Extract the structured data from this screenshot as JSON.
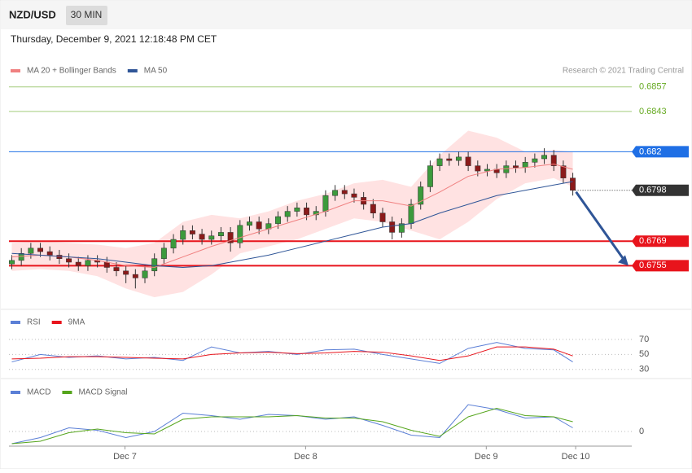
{
  "header": {
    "symbol": "NZD/USD",
    "interval": "30 MIN",
    "timestamp": "Thursday, December 9, 2021 12:18:48 PM CET"
  },
  "chart_data": [
    {
      "type": "candlestick",
      "credit": "Research © 2021 Trading Central",
      "xlim": [
        -0.3,
        65.2
      ],
      "xticks": [
        {
          "value": 11.9,
          "label": "Dec 7"
        },
        {
          "value": 30.9,
          "label": "Dec 8"
        },
        {
          "value": 49.9,
          "label": "Dec 9"
        },
        {
          "value": 59.3,
          "label": "Dec 10"
        }
      ],
      "ylim": [
        0.6731,
        0.6888
      ],
      "candles": {
        "up_color": "#3c9a3c",
        "down_color": "#8b1a1a",
        "open": [
          0.6756,
          0.6758,
          0.6762,
          0.6765,
          0.6763,
          0.6761,
          0.6759,
          0.6757,
          0.6755,
          0.6758,
          0.6757,
          0.6754,
          0.6752,
          0.675,
          0.6748,
          0.6752,
          0.6759,
          0.6765,
          0.677,
          0.6775,
          0.6773,
          0.677,
          0.6772,
          0.6774,
          0.6768,
          0.6778,
          0.678,
          0.6776,
          0.6779,
          0.6783,
          0.6786,
          0.6788,
          0.6784,
          0.6786,
          0.6795,
          0.6798,
          0.6796,
          0.6794,
          0.679,
          0.6785,
          0.678,
          0.6774,
          0.6779,
          0.679,
          0.68,
          0.6812,
          0.6816,
          0.6815,
          0.6817,
          0.6812,
          0.6809,
          0.681,
          0.6808,
          0.6812,
          0.6811,
          0.6814,
          0.6816,
          0.6818,
          0.6812,
          0.6805
        ],
        "high": [
          0.6761,
          0.6765,
          0.6768,
          0.6768,
          0.6766,
          0.6764,
          0.6762,
          0.676,
          0.6761,
          0.6761,
          0.676,
          0.6757,
          0.6755,
          0.6753,
          0.6755,
          0.6762,
          0.6768,
          0.6773,
          0.6778,
          0.6778,
          0.6776,
          0.6775,
          0.6777,
          0.6777,
          0.6781,
          0.6783,
          0.6783,
          0.6782,
          0.6786,
          0.6789,
          0.6791,
          0.6791,
          0.6789,
          0.6798,
          0.6801,
          0.6801,
          0.6799,
          0.6797,
          0.6793,
          0.6788,
          0.6783,
          0.6782,
          0.6793,
          0.6803,
          0.6815,
          0.6819,
          0.6819,
          0.682,
          0.682,
          0.6815,
          0.6813,
          0.6813,
          0.6815,
          0.6815,
          0.6817,
          0.6819,
          0.6822,
          0.6821,
          0.6815,
          0.6808
        ],
        "low": [
          0.6753,
          0.6755,
          0.6759,
          0.676,
          0.6758,
          0.6756,
          0.6754,
          0.6752,
          0.6752,
          0.6754,
          0.6751,
          0.6749,
          0.6745,
          0.6742,
          0.6745,
          0.6749,
          0.6756,
          0.6762,
          0.6767,
          0.677,
          0.6767,
          0.6767,
          0.6769,
          0.6763,
          0.6765,
          0.6775,
          0.6773,
          0.6773,
          0.6776,
          0.678,
          0.6783,
          0.6781,
          0.6781,
          0.6783,
          0.6792,
          0.6793,
          0.6791,
          0.6787,
          0.6782,
          0.6777,
          0.677,
          0.6771,
          0.6776,
          0.6787,
          0.6797,
          0.6809,
          0.6812,
          0.6812,
          0.6809,
          0.6806,
          0.6806,
          0.6805,
          0.6805,
          0.6808,
          0.6808,
          0.6811,
          0.6813,
          0.6809,
          0.6802,
          0.6795
        ],
        "close": [
          0.6758,
          0.6762,
          0.6765,
          0.6763,
          0.6761,
          0.6759,
          0.6757,
          0.6755,
          0.6758,
          0.6757,
          0.6754,
          0.6752,
          0.675,
          0.6748,
          0.6752,
          0.6759,
          0.6765,
          0.677,
          0.6775,
          0.6773,
          0.677,
          0.6772,
          0.6774,
          0.6768,
          0.6778,
          0.678,
          0.6776,
          0.6779,
          0.6783,
          0.6786,
          0.6788,
          0.6784,
          0.6786,
          0.6795,
          0.6798,
          0.6796,
          0.6794,
          0.679,
          0.6785,
          0.678,
          0.6774,
          0.6779,
          0.679,
          0.68,
          0.6812,
          0.6816,
          0.6815,
          0.6817,
          0.6812,
          0.6809,
          0.681,
          0.6808,
          0.6812,
          0.6811,
          0.6814,
          0.6816,
          0.6818,
          0.6812,
          0.6805,
          0.6798
        ]
      },
      "series": [
        {
          "name": "MA 20 + Bollinger Bands",
          "color": "#f08080",
          "band_color": "#ffd6d6",
          "x": [
            0,
            3,
            6,
            9,
            12,
            15,
            18,
            21,
            24,
            27,
            30,
            33,
            36,
            39,
            42,
            45,
            48,
            51,
            54,
            57,
            59
          ],
          "values": [
            0.676,
            0.6761,
            0.676,
            0.6758,
            0.6755,
            0.6754,
            0.676,
            0.6766,
            0.6771,
            0.6776,
            0.6781,
            0.6786,
            0.6792,
            0.6792,
            0.6789,
            0.6797,
            0.6806,
            0.681,
            0.6811,
            0.6813,
            0.681
          ],
          "upper": [
            0.6768,
            0.6769,
            0.6768,
            0.6767,
            0.6765,
            0.6768,
            0.678,
            0.6784,
            0.6782,
            0.6786,
            0.6792,
            0.6796,
            0.6802,
            0.6804,
            0.68,
            0.6818,
            0.6832,
            0.6828,
            0.682,
            0.6821,
            0.682
          ],
          "lower": [
            0.6752,
            0.6753,
            0.6752,
            0.6749,
            0.6742,
            0.6737,
            0.674,
            0.675,
            0.6762,
            0.6766,
            0.677,
            0.6776,
            0.6782,
            0.678,
            0.6775,
            0.677,
            0.678,
            0.6793,
            0.6802,
            0.6805,
            0.68
          ]
        },
        {
          "name": "MA 50",
          "color": "#2f5597",
          "x": [
            0,
            3,
            6,
            9,
            12,
            15,
            18,
            21,
            24,
            27,
            30,
            33,
            36,
            39,
            42,
            45,
            48,
            51,
            54,
            57,
            59
          ],
          "values": [
            0.6762,
            0.6761,
            0.676,
            0.6759,
            0.6757,
            0.6755,
            0.6754,
            0.6755,
            0.6758,
            0.6761,
            0.6765,
            0.6769,
            0.6773,
            0.6777,
            0.6779,
            0.6785,
            0.679,
            0.6795,
            0.6798,
            0.6801,
            0.6803
          ]
        }
      ],
      "levels": [
        {
          "value": 0.6857,
          "color": "#66aa22",
          "style": "plain"
        },
        {
          "value": 0.6843,
          "color": "#66aa22",
          "style": "plain"
        },
        {
          "value": 0.682,
          "color": "#1f6fe5",
          "style": "box"
        },
        {
          "value": 0.6798,
          "color": "#333333",
          "style": "current"
        },
        {
          "value": 0.6769,
          "color": "#e8141c",
          "style": "box"
        },
        {
          "value": 0.6755,
          "color": "#e8141c",
          "style": "box"
        }
      ]
    },
    {
      "type": "line",
      "xlim": [
        -0.3,
        65.2
      ],
      "ylim": [
        20,
        110
      ],
      "yticks": [
        70,
        50,
        30
      ],
      "series": [
        {
          "name": "RSI",
          "color": "#5b7fd6",
          "x": [
            0,
            3,
            6,
            9,
            12,
            15,
            18,
            21,
            24,
            27,
            30,
            33,
            36,
            39,
            42,
            45,
            48,
            51,
            54,
            57,
            59
          ],
          "values": [
            40,
            50,
            46,
            48,
            44,
            46,
            42,
            60,
            52,
            54,
            50,
            56,
            57,
            50,
            44,
            38,
            58,
            66,
            58,
            56,
            40
          ]
        },
        {
          "name": "9MA",
          "color": "#e8141c",
          "x": [
            0,
            3,
            6,
            9,
            12,
            15,
            18,
            21,
            24,
            27,
            30,
            33,
            36,
            39,
            42,
            45,
            48,
            51,
            54,
            57,
            59
          ],
          "values": [
            44,
            45,
            47,
            47,
            46,
            45,
            44,
            50,
            52,
            53,
            51,
            52,
            54,
            53,
            48,
            42,
            48,
            60,
            60,
            57,
            48
          ]
        }
      ]
    },
    {
      "type": "line",
      "xlim": [
        -0.3,
        65.2
      ],
      "ylim": [
        -0.00012,
        0.0004
      ],
      "yticks": [
        0
      ],
      "series": [
        {
          "name": "MACD",
          "color": "#5b7fd6",
          "x": [
            0,
            3,
            6,
            9,
            12,
            15,
            18,
            21,
            24,
            27,
            30,
            33,
            36,
            39,
            42,
            45,
            48,
            51,
            54,
            57,
            59
          ],
          "values": [
            -0.0001,
            -5e-05,
            3e-05,
            1e-05,
            -5e-05,
            0.0,
            0.00015,
            0.00013,
            0.0001,
            0.00014,
            0.00013,
            0.0001,
            0.00012,
            5e-05,
            -3e-05,
            -5e-05,
            0.00022,
            0.00018,
            0.00011,
            0.00012,
            3e-05
          ]
        },
        {
          "name": "MACD Signal",
          "color": "#55a51c",
          "x": [
            0,
            3,
            6,
            9,
            12,
            15,
            18,
            21,
            24,
            27,
            30,
            33,
            36,
            39,
            42,
            45,
            48,
            51,
            54,
            57,
            59
          ],
          "values": [
            -0.0001,
            -8e-05,
            -1e-05,
            2e-05,
            -1e-05,
            -2e-05,
            0.0001,
            0.00012,
            0.00012,
            0.00012,
            0.00013,
            0.00011,
            0.00011,
            8e-05,
            1e-05,
            -4e-05,
            0.00012,
            0.00019,
            0.00013,
            0.00012,
            8e-05
          ]
        }
      ]
    }
  ]
}
